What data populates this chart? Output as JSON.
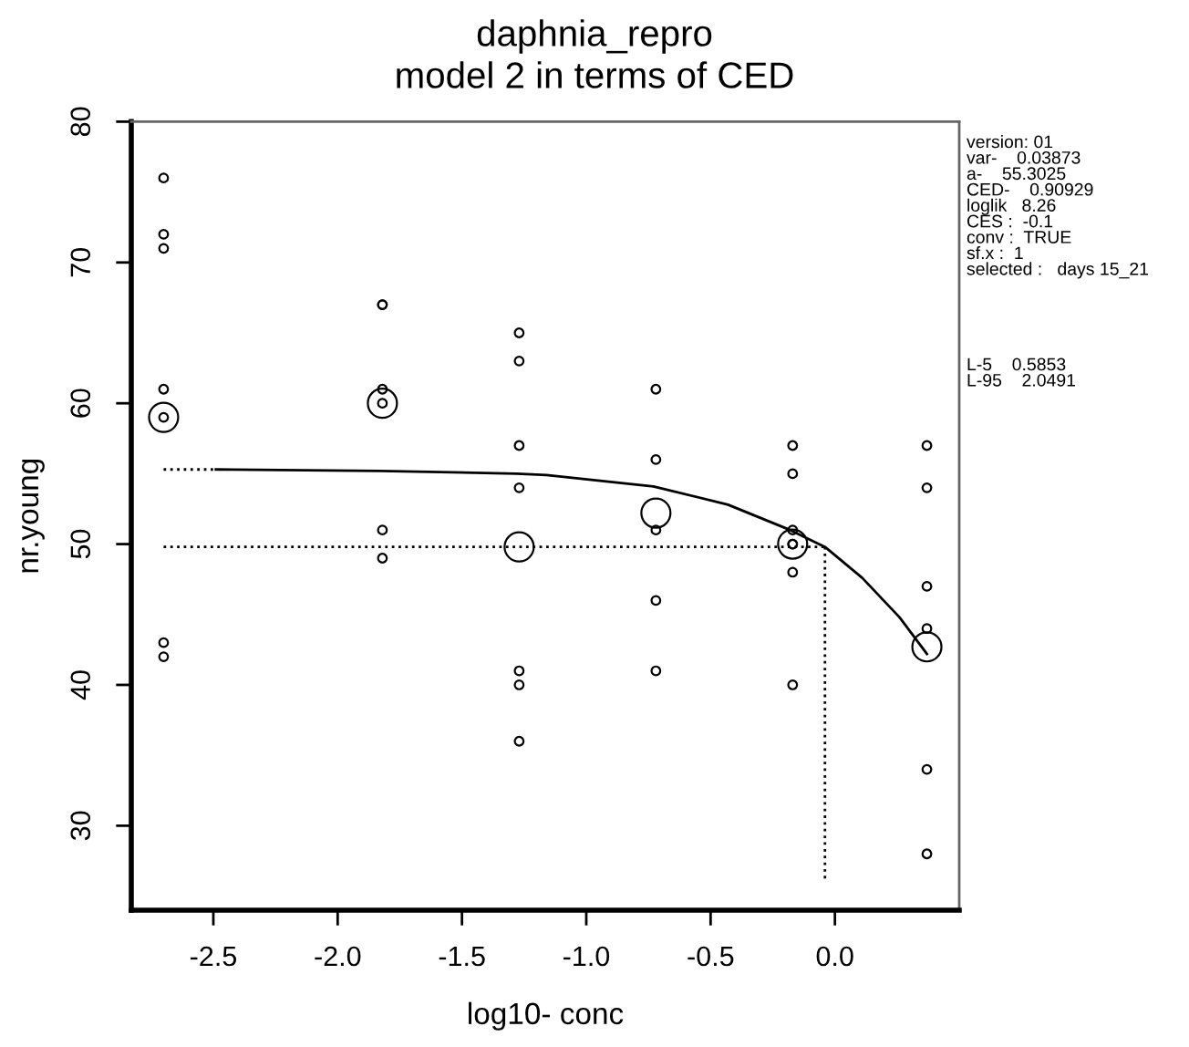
{
  "chart_data": {
    "type": "bubble",
    "title": "daphnia_repro",
    "subtitle": "model 2 in terms of CED",
    "xlabel": "log10- conc",
    "ylabel": "nr.young",
    "xlim": [
      -2.83,
      0.5
    ],
    "ylim": [
      24,
      80
    ],
    "xticks": [
      -2.5,
      {
        "value": -2,
        "label": "-2.0"
      },
      -1.5,
      {
        "value": -1,
        "label": "-1.0"
      },
      -0.5,
      {
        "value": 0,
        "label": "0.0"
      }
    ],
    "yticks": [
      30,
      40,
      50,
      60,
      70,
      80
    ],
    "grid": false,
    "legend": false,
    "marker": "circle",
    "series": [
      {
        "sizes": [
          1,
          1,
          1,
          1,
          1,
          1,
          0.09,
          0.09,
          0.09,
          0.09,
          0.09,
          0.09,
          0.09,
          0.09,
          0.09,
          0.09,
          0.09,
          0.09,
          0.09,
          0.09,
          0.09,
          0.09,
          0.09,
          0.09,
          0.09,
          0.09,
          0.09,
          0.09,
          0.09,
          0.09,
          0.09,
          0.09,
          0.09,
          0.09,
          0.09,
          0.09,
          0.09,
          0.09,
          0.09,
          0.09,
          0.09,
          0.09,
          0.09,
          0.09
        ],
        "color": "#000000",
        "x": [
          -2.7,
          -1.82,
          -1.27,
          -0.72,
          -0.17,
          0.37,
          -2.7,
          -2.7,
          -2.7,
          -2.7,
          -2.7,
          -2.7,
          -2.7,
          -1.82,
          -1.82,
          -1.82,
          -1.82,
          -1.82,
          -1.82,
          -1.27,
          -1.27,
          -1.27,
          -1.27,
          -1.27,
          -1.27,
          -1.27,
          -0.72,
          -0.72,
          -0.72,
          -0.72,
          -0.72,
          -0.17,
          -0.17,
          -0.17,
          -0.17,
          -0.17,
          -0.17,
          -0.17,
          0.37,
          0.37,
          0.37,
          0.37,
          0.37,
          0.37
        ],
        "values": [
          59,
          60,
          49.8,
          52.2,
          50,
          42.7,
          76,
          72,
          71,
          61,
          59,
          43,
          42,
          67,
          67,
          61,
          60,
          51,
          49,
          65,
          63,
          57,
          54,
          41,
          40,
          36,
          61,
          56,
          51,
          46,
          41,
          57,
          55,
          51,
          50,
          50,
          48,
          40,
          57,
          54,
          47,
          44,
          34,
          28
        ]
      },
      {
        "type": "line",
        "color": "#000000",
        "line_style": "solid",
        "marker": "none",
        "x": [
          -2.49,
          -1.83,
          -1.28,
          -1.16,
          -0.73,
          -0.43,
          -0.18,
          -0.04,
          0.11,
          0.26,
          0.37
        ],
        "values": [
          55.3,
          55.2,
          55.0,
          54.9,
          54.1,
          52.8,
          51.0,
          49.8,
          47.6,
          44.8,
          42.2
        ]
      },
      {
        "type": "line",
        "color": "#000000",
        "line_style": "dotted",
        "marker": "none",
        "x": [
          -2.7,
          -2.49
        ],
        "values": [
          55.3,
          55.3
        ]
      },
      {
        "type": "line",
        "color": "#000000",
        "line_style": "dotted",
        "marker": "none",
        "x": [
          -2.7,
          -0.04
        ],
        "values": [
          49.8,
          49.8
        ]
      },
      {
        "type": "line",
        "color": "#000000",
        "line_style": "dotted",
        "marker": "none",
        "x": [
          -0.04,
          -0.04
        ],
        "values": [
          49.8,
          26
        ]
      }
    ],
    "annotations": [
      "version: 01\nvar-    0.03873\na-    55.3025\nCED-    0.90929\nloglik   8.26\nCES :  -0.1\nconv :  TRUE\nsf.x :  1\nselected :   days 15_21",
      "L-5    0.5853\nL-95    2.0491"
    ]
  }
}
